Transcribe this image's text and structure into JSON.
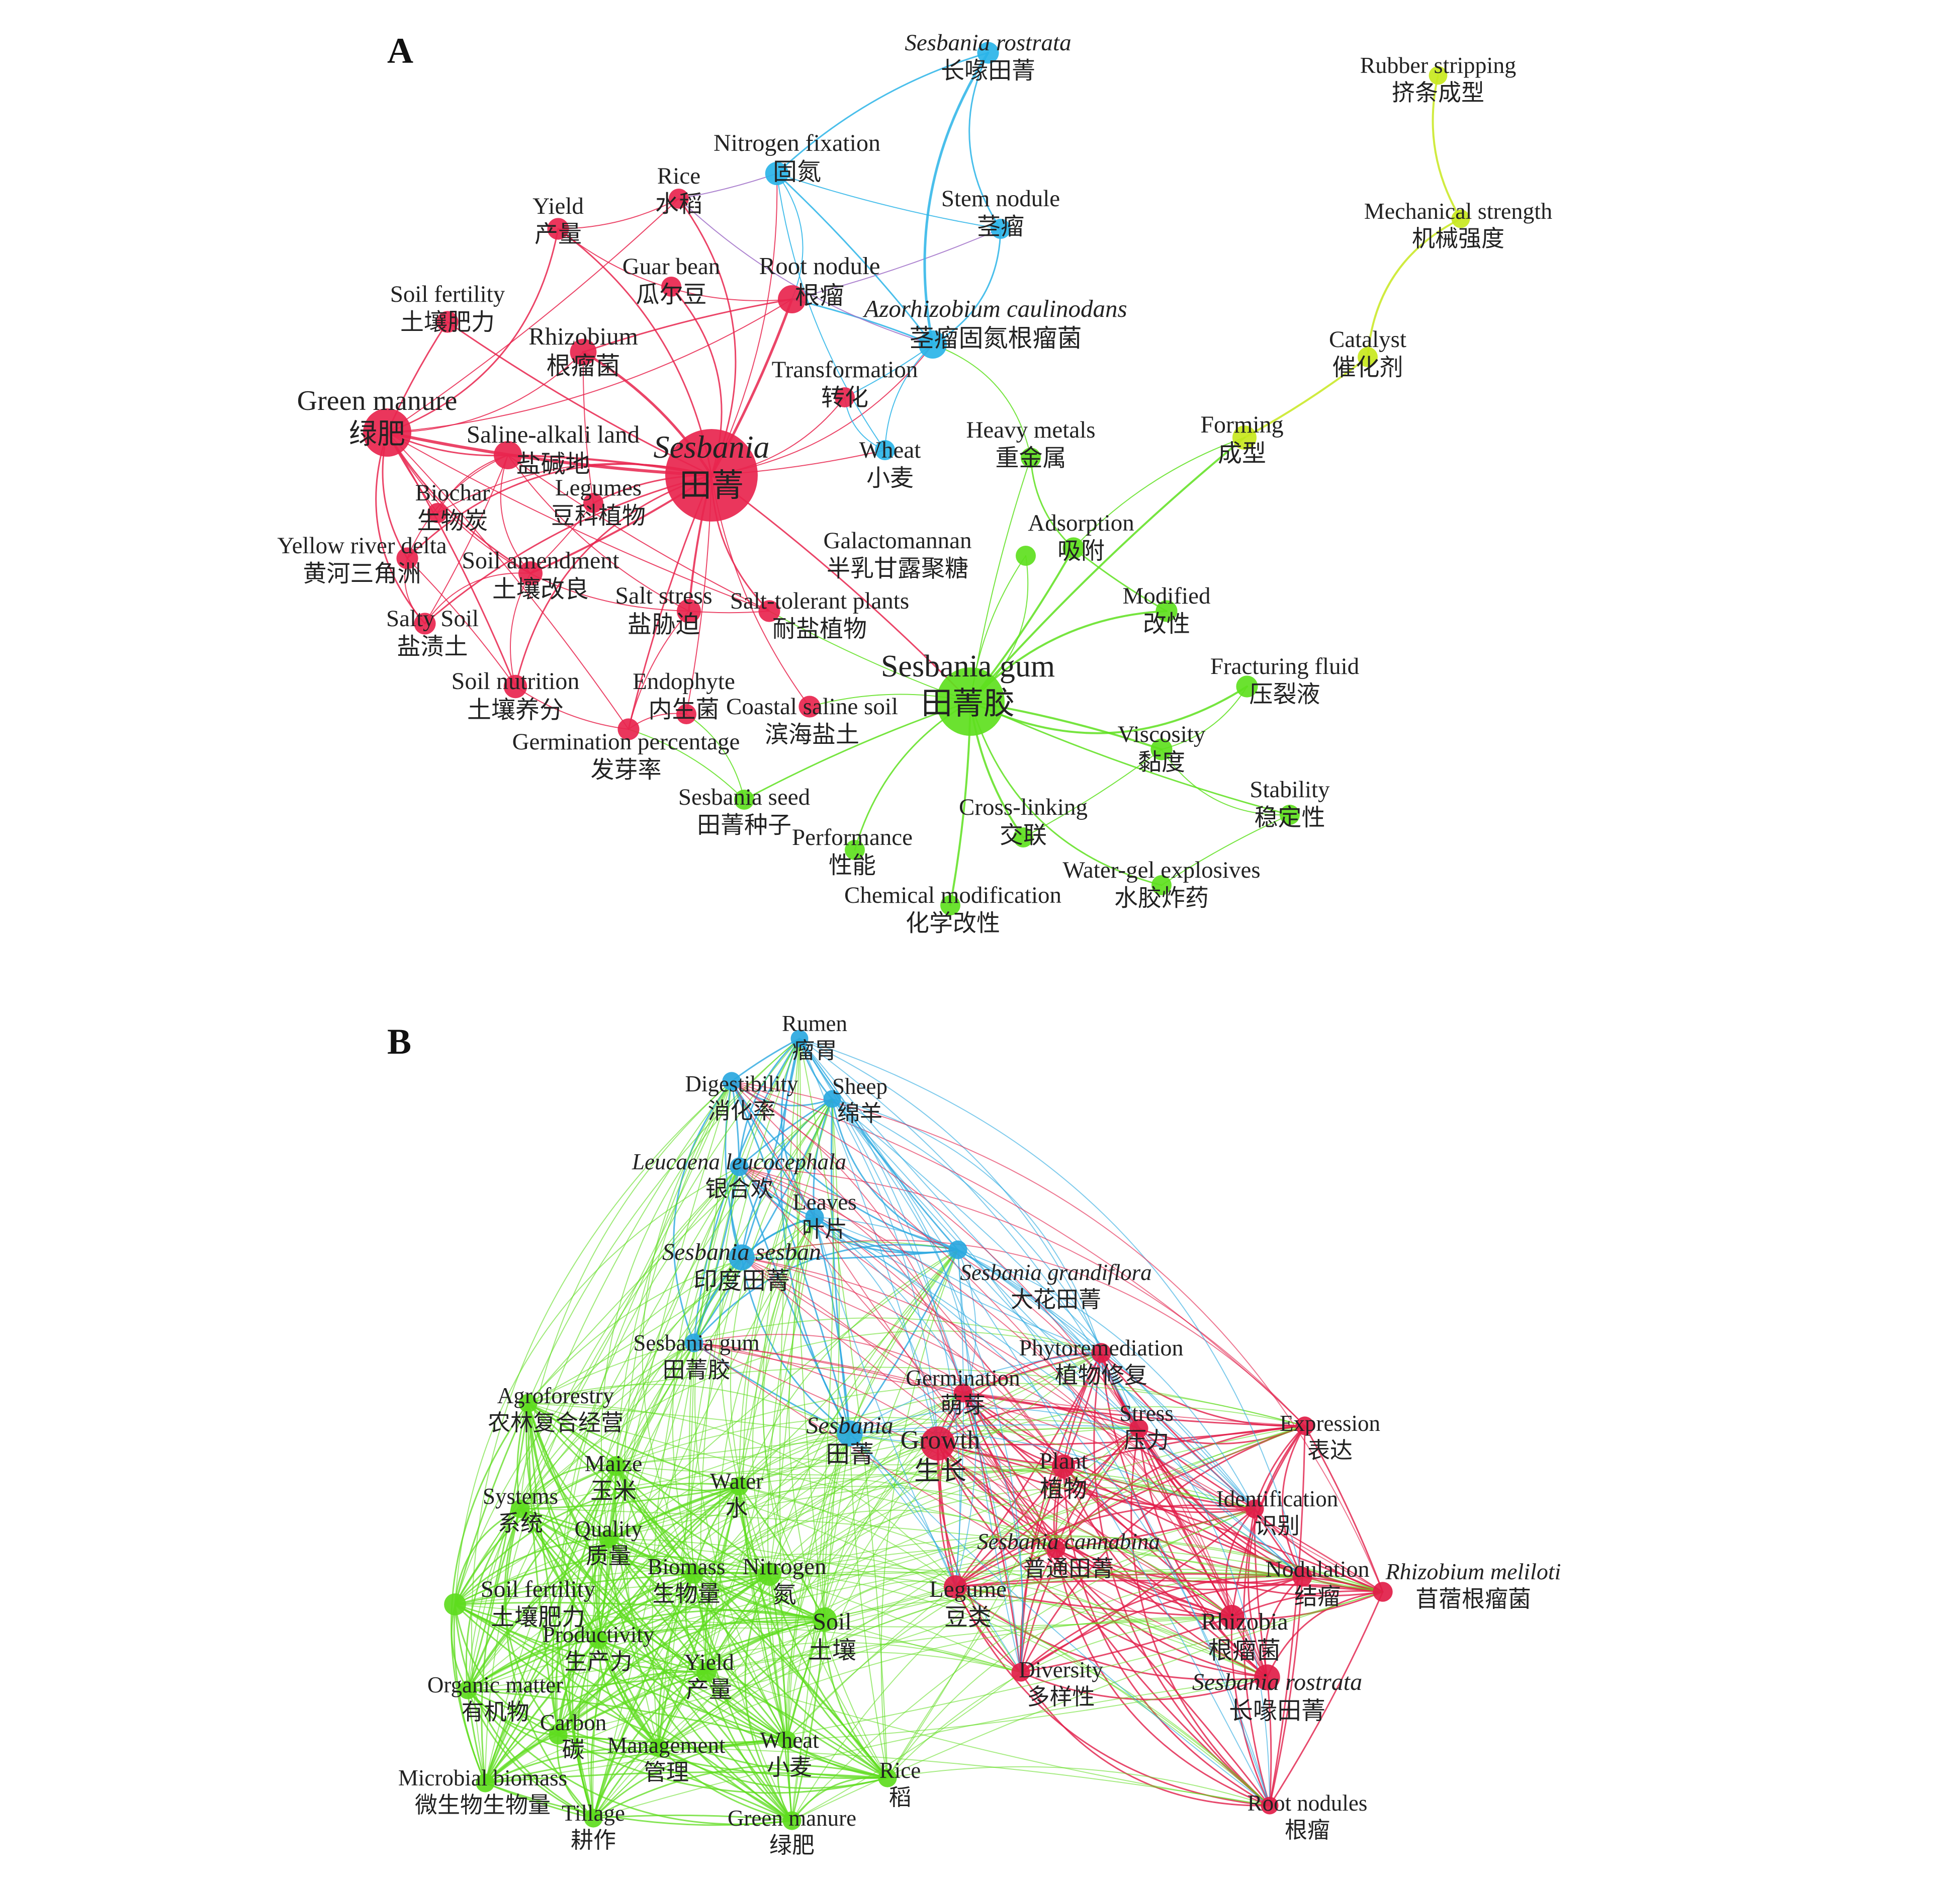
{
  "panels": [
    {
      "label": "A",
      "colors": {
        "red": "#e8254e",
        "blue": "#2ab4e8",
        "green": "#5ee01e",
        "yellow": "#c8e81e",
        "purple": "#a070c8"
      },
      "nodes": [
        {
          "id": "sesbania",
          "en": "Sesbania",
          "zh": "田菁",
          "italic": true,
          "c": "red",
          "r": 1.0
        },
        {
          "id": "gm",
          "en": "Green manure",
          "zh": "绿肥",
          "c": "red",
          "r": 0.45
        },
        {
          "id": "yield",
          "en": "Yield",
          "zh": "产量",
          "c": "red",
          "r": 0.12
        },
        {
          "id": "rice",
          "en": "Rice",
          "zh": "水稻",
          "c": "red",
          "r": 0.1
        },
        {
          "id": "sf",
          "en": "Soil fertility",
          "zh": "土壤肥力",
          "c": "red",
          "r": 0.12
        },
        {
          "id": "guar",
          "en": "Guar bean",
          "zh": "瓜尔豆",
          "c": "red",
          "r": 0.1
        },
        {
          "id": "rn",
          "en": "Root nodule",
          "zh": "根瘤",
          "c": "red",
          "r": 0.2
        },
        {
          "id": "rhizobium",
          "en": "Rhizobium",
          "zh": "根瘤菌",
          "c": "red",
          "r": 0.18
        },
        {
          "id": "sal",
          "en": "Saline-alkali land",
          "zh": "盐碱地",
          "c": "red",
          "r": 0.2
        },
        {
          "id": "legumes",
          "en": "Legumes",
          "zh": "豆科植物",
          "c": "red",
          "r": 0.1
        },
        {
          "id": "biochar",
          "en": "Biochar",
          "zh": "生物炭",
          "c": "red",
          "r": 0.1
        },
        {
          "id": "yrd",
          "en": "Yellow river delta",
          "zh": "黄河三角洲",
          "c": "red",
          "r": 0.12
        },
        {
          "id": "sa",
          "en": "Soil amendment",
          "zh": "土壤改良",
          "c": "red",
          "r": 0.15
        },
        {
          "id": "ss",
          "en": "Salt stress",
          "zh": "盐胁迫",
          "c": "red",
          "r": 0.15
        },
        {
          "id": "salty",
          "en": "Salty Soil",
          "zh": "盐渍土",
          "c": "red",
          "r": 0.12
        },
        {
          "id": "stp",
          "en": "Salt-tolerant plants",
          "zh": "耐盐植物",
          "c": "red",
          "r": 0.12
        },
        {
          "id": "sn",
          "en": "Soil nutrition",
          "zh": "土壤养分",
          "c": "red",
          "r": 0.14
        },
        {
          "id": "endo",
          "en": "Endophyte",
          "zh": "内生菌",
          "c": "red",
          "r": 0.1
        },
        {
          "id": "gp",
          "en": "Germination percentage",
          "zh": "发芽率",
          "c": "red",
          "r": 0.12
        },
        {
          "id": "css",
          "en": "Coastal saline soil",
          "zh": "滨海盐土",
          "c": "red",
          "r": 0.12
        },
        {
          "id": "transf",
          "en": "Transformation",
          "zh": "转化",
          "c": "red",
          "r": 0.1
        },
        {
          "id": "srostrata",
          "en": "Sesbania rostrata",
          "zh": "长喙田菁",
          "italic": true,
          "c": "blue",
          "r": 0.12
        },
        {
          "id": "nfix",
          "en": "Nitrogen fixation",
          "zh": "固氮",
          "c": "blue",
          "r": 0.14
        },
        {
          "id": "stem",
          "en": "Stem nodule",
          "zh": "茎瘤",
          "c": "blue",
          "r": 0.1
        },
        {
          "id": "azo",
          "en": "Azorhizobium caulinodans",
          "zh": "茎瘤固氮根瘤菌",
          "italic": true,
          "c": "blue",
          "r": 0.2
        },
        {
          "id": "wheat",
          "en": "Wheat",
          "zh": "小麦",
          "c": "blue",
          "r": 0.1
        },
        {
          "id": "rubber",
          "en": "Rubber stripping",
          "zh": "挤条成型",
          "c": "yellow",
          "r": 0.08
        },
        {
          "id": "mech",
          "en": "Mechanical strength",
          "zh": "机械强度",
          "c": "yellow",
          "r": 0.08
        },
        {
          "id": "cat",
          "en": "Catalyst",
          "zh": "催化剂",
          "c": "yellow",
          "r": 0.1
        },
        {
          "id": "forming",
          "en": "Forming",
          "zh": "成型",
          "c": "yellow",
          "r": 0.15
        },
        {
          "id": "heavy",
          "en": "Heavy metals",
          "zh": "重金属",
          "c": "green",
          "r": 0.1
        },
        {
          "id": "ads",
          "en": "Adsorption",
          "zh": "吸附",
          "c": "green",
          "r": 0.12
        },
        {
          "id": "galac",
          "en": "Galactomannan",
          "zh": "半乳甘露聚糖",
          "c": "green",
          "r": 0.1
        },
        {
          "id": "mod",
          "en": "Modified",
          "zh": "改性",
          "c": "green",
          "r": 0.12
        },
        {
          "id": "sgum",
          "en": "Sesbania gum",
          "zh": "田菁胶",
          "c": "green",
          "r": 0.7
        },
        {
          "id": "frac",
          "en": "Fracturing fluid",
          "zh": "压裂液",
          "c": "green",
          "r": 0.12
        },
        {
          "id": "visc",
          "en": "Viscosity",
          "zh": "黏度",
          "c": "green",
          "r": 0.12
        },
        {
          "id": "stab",
          "en": "Stability",
          "zh": "稳定性",
          "c": "green",
          "r": 0.1
        },
        {
          "id": "seed",
          "en": "Sesbania seed",
          "zh": "田菁种子",
          "c": "green",
          "r": 0.1
        },
        {
          "id": "cross",
          "en": "Cross-linking",
          "zh": "交联",
          "c": "green",
          "r": 0.1
        },
        {
          "id": "perf",
          "en": "Performance",
          "zh": "性能",
          "c": "green",
          "r": 0.1
        },
        {
          "id": "wge",
          "en": "Water-gel explosives",
          "zh": "水胶炸药",
          "c": "green",
          "r": 0.1
        },
        {
          "id": "chem",
          "en": "Chemical modification",
          "zh": "化学改性",
          "c": "green",
          "r": 0.1
        }
      ]
    },
    {
      "label": "B",
      "colors": {
        "red": "#e11d48",
        "blue": "#2aa8e0",
        "green": "#5edc1e"
      },
      "nodes": [
        {
          "id": "rumen",
          "en": "Rumen",
          "zh": "瘤胃",
          "c": "blue",
          "r": 0.1
        },
        {
          "id": "digest",
          "en": "Digestibility",
          "zh": "消化率",
          "c": "blue",
          "r": 0.12
        },
        {
          "id": "sheep",
          "en": "Sheep",
          "zh": "绵羊",
          "c": "blue",
          "r": 0.1
        },
        {
          "id": "leuc",
          "en": "Leucaena leucocephala",
          "zh": "银合欢",
          "italic": true,
          "c": "blue",
          "r": 0.12
        },
        {
          "id": "leaves",
          "en": "Leaves",
          "zh": "叶片",
          "c": "blue",
          "r": 0.12
        },
        {
          "id": "ssesban",
          "en": "Sesbania sesban",
          "zh": "印度田菁",
          "italic": true,
          "c": "blue",
          "r": 0.25
        },
        {
          "id": "sgrand",
          "en": "Sesbania grandiflora",
          "zh": "大花田菁",
          "italic": true,
          "c": "blue",
          "r": 0.12
        },
        {
          "id": "sgum",
          "en": "Sesbania  gum",
          "zh": "田菁胶",
          "c": "blue",
          "r": 0.12
        },
        {
          "id": "sesb",
          "en": "Sesbania",
          "zh": "田菁",
          "italic": true,
          "c": "blue",
          "r": 0.25
        },
        {
          "id": "phyto",
          "en": "Phytoremediation",
          "zh": "植物修复",
          "c": "red",
          "r": 0.14
        },
        {
          "id": "germ",
          "en": "Germination",
          "zh": "萌芽",
          "c": "red",
          "r": 0.12
        },
        {
          "id": "stress",
          "en": "Stress",
          "zh": "压力",
          "c": "red",
          "r": 0.12
        },
        {
          "id": "express",
          "en": "Expression",
          "zh": "表达",
          "c": "red",
          "r": 0.12
        },
        {
          "id": "growth",
          "en": "Growth",
          "zh": "生长",
          "c": "red",
          "r": 0.4
        },
        {
          "id": "plant",
          "en": "Plant",
          "zh": "植物",
          "c": "red",
          "r": 0.2
        },
        {
          "id": "ident",
          "en": "Identification",
          "zh": "识别",
          "c": "red",
          "r": 0.12
        },
        {
          "id": "scann",
          "en": "Sesbania cannabina",
          "zh": "普通田菁",
          "italic": true,
          "c": "red",
          "r": 0.12
        },
        {
          "id": "nodul",
          "en": "Nodulation",
          "zh": "结瘤",
          "c": "red",
          "r": 0.14
        },
        {
          "id": "rmel",
          "en": "Rhizobium meliloti",
          "zh": "苜蓿根瘤菌",
          "italic": true,
          "c": "red",
          "r": 0.14
        },
        {
          "id": "legume",
          "en": "Legume",
          "zh": "豆类",
          "c": "red",
          "r": 0.2
        },
        {
          "id": "rhizobia",
          "en": "Rhizobia",
          "zh": "根瘤菌",
          "c": "red",
          "r": 0.22
        },
        {
          "id": "diversity",
          "en": "Diversity",
          "zh": "多样性",
          "c": "red",
          "r": 0.12
        },
        {
          "id": "srost",
          "en": "Sesbania rostrata",
          "zh": "长喙田菁",
          "italic": true,
          "c": "red",
          "r": 0.25
        },
        {
          "id": "rnod",
          "en": "Root nodules",
          "zh": "根瘤",
          "c": "red",
          "r": 0.1
        },
        {
          "id": "agro",
          "en": "Agroforestry",
          "zh": "农林复合经营",
          "c": "green",
          "r": 0.12
        },
        {
          "id": "maize",
          "en": "Maize",
          "zh": "玉米",
          "c": "green",
          "r": 0.14
        },
        {
          "id": "water",
          "en": "Water",
          "zh": "水",
          "c": "green",
          "r": 0.12
        },
        {
          "id": "systems",
          "en": "Systems",
          "zh": "系统",
          "c": "green",
          "r": 0.12
        },
        {
          "id": "quality",
          "en": "Quality",
          "zh": "质量",
          "c": "green",
          "r": 0.12
        },
        {
          "id": "biomass",
          "en": "Biomass",
          "zh": "生物量",
          "c": "green",
          "r": 0.12
        },
        {
          "id": "nitrogen",
          "en": "Nitrogen",
          "zh": "氮",
          "c": "green",
          "r": 0.2
        },
        {
          "id": "sfert",
          "en": "Soil  fertility",
          "zh": "土壤肥力",
          "c": "green",
          "r": 0.18
        },
        {
          "id": "soil",
          "en": "Soil",
          "zh": "土壤",
          "c": "green",
          "r": 0.22
        },
        {
          "id": "prod",
          "en": "Productivity",
          "zh": "生产力",
          "c": "green",
          "r": 0.12
        },
        {
          "id": "yield",
          "en": "Yield",
          "zh": "产量",
          "c": "green",
          "r": 0.14
        },
        {
          "id": "om",
          "en": "Organic matter",
          "zh": "有机物",
          "c": "green",
          "r": 0.12
        },
        {
          "id": "carbon",
          "en": "Carbon",
          "zh": "碳",
          "c": "green",
          "r": 0.12
        },
        {
          "id": "mgmt",
          "en": "Management",
          "zh": "管理",
          "c": "green",
          "r": 0.12
        },
        {
          "id": "wheat",
          "en": "Wheat",
          "zh": "小麦",
          "c": "green",
          "r": 0.12
        },
        {
          "id": "mb",
          "en": "Microbial biomass",
          "zh": "微生物生物量",
          "c": "green",
          "r": 0.12
        },
        {
          "id": "rice",
          "en": "Rice",
          "zh": "稻",
          "c": "green",
          "r": 0.12
        },
        {
          "id": "tillage",
          "en": "Tillage",
          "zh": "耕作",
          "c": "green",
          "r": 0.12
        },
        {
          "id": "gmanure",
          "en": "Green  manure",
          "zh": "绿肥",
          "c": "green",
          "r": 0.12
        }
      ]
    }
  ]
}
